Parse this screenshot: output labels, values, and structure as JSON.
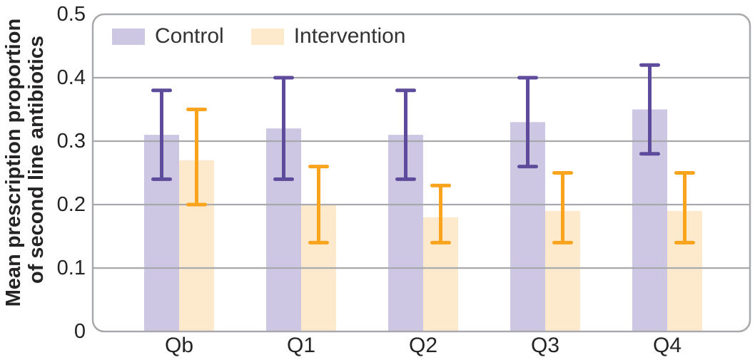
{
  "chart_data": {
    "type": "bar",
    "title": "",
    "ylabel_line1": "Mean prescription proportion",
    "ylabel_line2": "of second line antibiotics",
    "xlabel": "",
    "categories": [
      "Qb",
      "Q1",
      "Q2",
      "Q3",
      "Q4"
    ],
    "series": [
      {
        "name": "Control",
        "fill_color": "#CDC7E4",
        "error_color": "#5E4B9C",
        "values": [
          0.31,
          0.32,
          0.31,
          0.33,
          0.35
        ],
        "error_low": [
          0.24,
          0.24,
          0.24,
          0.26,
          0.28
        ],
        "error_high": [
          0.38,
          0.4,
          0.38,
          0.4,
          0.42
        ]
      },
      {
        "name": "Intervention",
        "fill_color": "#FDEACD",
        "error_color": "#F9A41C",
        "values": [
          0.27,
          0.2,
          0.18,
          0.19,
          0.19
        ],
        "error_low": [
          0.2,
          0.14,
          0.14,
          0.14,
          0.14
        ],
        "error_high": [
          0.35,
          0.26,
          0.23,
          0.25,
          0.25
        ]
      }
    ],
    "ylim": [
      0,
      0.5
    ],
    "yticks": [
      "0",
      "0.1",
      "0.2",
      "0.3",
      "0.4",
      "0.5"
    ],
    "ytick_values": [
      0,
      0.1,
      0.2,
      0.3,
      0.4,
      0.5
    ],
    "grid": true,
    "legend_position": "top-left",
    "frame_color": "#A7A9AC",
    "grid_color": "#A7A9AC",
    "text_color": "#262324"
  }
}
